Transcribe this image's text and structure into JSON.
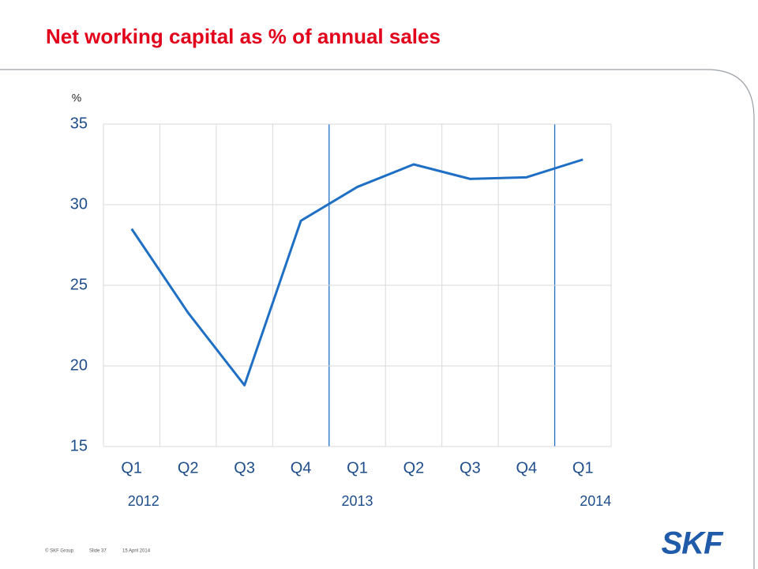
{
  "chart_data": {
    "type": "line",
    "title": "Net working capital as % of annual sales",
    "y_label": "%",
    "categories": [
      "Q1",
      "Q2",
      "Q3",
      "Q4",
      "Q1",
      "Q2",
      "Q3",
      "Q4",
      "Q1"
    ],
    "year_labels": [
      "2012",
      null,
      null,
      null,
      "2013",
      null,
      null,
      null,
      "2014"
    ],
    "values": [
      28.5,
      23.3,
      18.8,
      29.0,
      31.1,
      32.5,
      31.6,
      31.7,
      32.8
    ],
    "color": "#1f6fc5",
    "ylim": [
      15,
      35
    ],
    "yticks": [
      15,
      20,
      25,
      30,
      35
    ],
    "grid": true
  },
  "footer": {
    "copyright": "© SKF Group",
    "slide": "Slide 37",
    "date": "15 April 2014",
    "logo": "SKF"
  }
}
